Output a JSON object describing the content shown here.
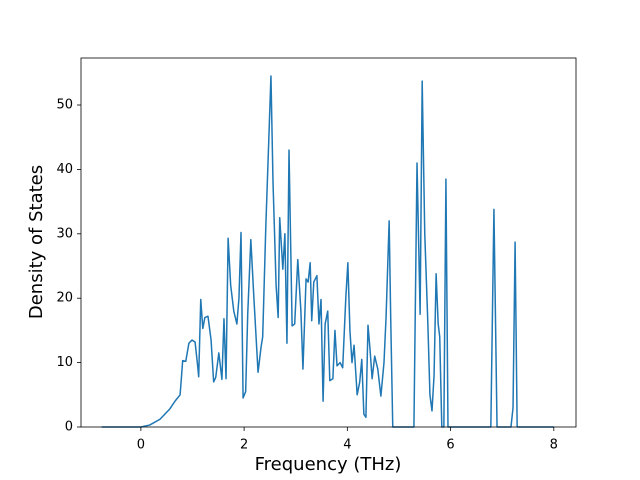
{
  "chart_data": {
    "type": "line",
    "xlabel": "Frequency (THz)",
    "ylabel": "Density of States",
    "xlim": [
      -1.16,
      8.43
    ],
    "ylim": [
      0,
      57.3
    ],
    "xticks": [
      0,
      2,
      4,
      6,
      8
    ],
    "yticks": [
      0,
      10,
      20,
      30,
      40,
      50
    ],
    "grid": false,
    "series": [
      {
        "color": "#1f77b4",
        "x": [
          -0.76,
          0,
          0.17,
          0.37,
          0.56,
          0.66,
          0.76,
          0.81,
          0.87,
          0.93,
          0.99,
          1.05,
          1.1,
          1.12,
          1.16,
          1.2,
          1.24,
          1.3,
          1.36,
          1.41,
          1.45,
          1.51,
          1.57,
          1.61,
          1.65,
          1.69,
          1.74,
          1.8,
          1.86,
          1.9,
          1.94,
          1.98,
          2.03,
          2.07,
          2.13,
          2.19,
          2.27,
          2.33,
          2.36,
          2.42,
          2.48,
          2.52,
          2.56,
          2.62,
          2.66,
          2.69,
          2.75,
          2.79,
          2.83,
          2.87,
          2.93,
          2.98,
          3.04,
          3.1,
          3.14,
          3.2,
          3.24,
          3.28,
          3.31,
          3.35,
          3.41,
          3.45,
          3.49,
          3.53,
          3.57,
          3.62,
          3.66,
          3.72,
          3.76,
          3.8,
          3.86,
          3.91,
          3.97,
          4.01,
          4.05,
          4.09,
          4.13,
          4.19,
          4.24,
          4.28,
          4.32,
          4.36,
          4.4,
          4.44,
          4.48,
          4.53,
          4.59,
          4.65,
          4.71,
          4.75,
          4.81,
          4.84,
          4.88,
          5.29,
          5.35,
          5.41,
          5.45,
          5.5,
          5.56,
          5.6,
          5.64,
          5.68,
          5.72,
          5.76,
          5.79,
          5.83,
          5.87,
          5.91,
          5.95,
          6.78,
          6.84,
          6.9,
          7.17,
          7.21,
          7.25,
          7.29,
          8.0
        ],
        "values": [
          0,
          0,
          0.3,
          1.2,
          2.8,
          4.0,
          5,
          10.3,
          10.2,
          13,
          13.5,
          13.2,
          9.5,
          7.8,
          19.8,
          15.3,
          17,
          17.2,
          13.5,
          7,
          7.7,
          11.5,
          7.4,
          16.8,
          7.5,
          29.3,
          22,
          18,
          16,
          20,
          30.2,
          4.5,
          5.5,
          17.5,
          29.1,
          20,
          8.5,
          12.5,
          14,
          31,
          45,
          54.5,
          38,
          22,
          17,
          32.5,
          24.5,
          30,
          13,
          43,
          15.7,
          16,
          26,
          18,
          9,
          23,
          22.5,
          25.5,
          16.5,
          22.5,
          23.5,
          16,
          19.8,
          4,
          16,
          18,
          7.2,
          7.5,
          15,
          9.5,
          10,
          9.2,
          20,
          25.5,
          15,
          10,
          12.7,
          5,
          7,
          10.5,
          2,
          1.5,
          15.8,
          12,
          7.5,
          11,
          9,
          4.8,
          10,
          17,
          32,
          17,
          0,
          0,
          41,
          17.5,
          53.7,
          30,
          16,
          5,
          2.5,
          8,
          23.8,
          16,
          14,
          0,
          0,
          38.5,
          0,
          0,
          33.8,
          0,
          0,
          3,
          28.7,
          0,
          0
        ]
      }
    ]
  }
}
